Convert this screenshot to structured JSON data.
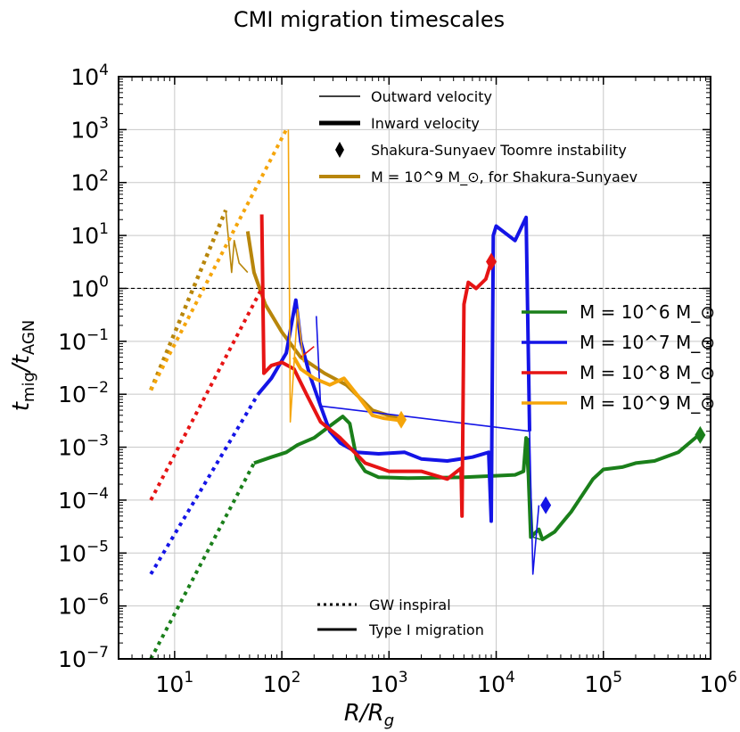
{
  "chart_data": {
    "type": "line",
    "title": "CMI migration timescales",
    "xlabel": "R/R_g",
    "ylabel": "t_mig/t_AGN",
    "x_scale": "log",
    "y_scale": "log",
    "xlim": [
      3,
      1000000
    ],
    "ylim": [
      1e-07,
      10000
    ],
    "x_ticks": [
      {
        "value": 10,
        "base": "10",
        "exp": "1"
      },
      {
        "value": 100,
        "base": "10",
        "exp": "2"
      },
      {
        "value": 1000,
        "base": "10",
        "exp": "3"
      },
      {
        "value": 10000,
        "base": "10",
        "exp": "4"
      },
      {
        "value": 100000,
        "base": "10",
        "exp": "5"
      },
      {
        "value": 1000000,
        "base": "10",
        "exp": "6"
      }
    ],
    "y_ticks": [
      {
        "value": 1e-07,
        "base": "10",
        "exp": "−7"
      },
      {
        "value": 1e-06,
        "base": "10",
        "exp": "−6"
      },
      {
        "value": 1e-05,
        "base": "10",
        "exp": "−5"
      },
      {
        "value": 0.0001,
        "base": "10",
        "exp": "−4"
      },
      {
        "value": 0.001,
        "base": "10",
        "exp": "−3"
      },
      {
        "value": 0.01,
        "base": "10",
        "exp": "−2"
      },
      {
        "value": 0.1,
        "base": "10",
        "exp": "−1"
      },
      {
        "value": 1,
        "base": "10",
        "exp": "0"
      },
      {
        "value": 10,
        "base": "10",
        "exp": "1"
      },
      {
        "value": 100,
        "base": "10",
        "exp": "2"
      },
      {
        "value": 1000,
        "base": "10",
        "exp": "3"
      },
      {
        "value": 10000,
        "base": "10",
        "exp": "4"
      }
    ],
    "grid": true,
    "reference_line": {
      "y": 1,
      "style": "dashed"
    },
    "series": [
      {
        "name": "M = 10^6 M_⊙",
        "color": "#1a7f1a",
        "gw_inspiral": [
          [
            6,
            1e-07
          ],
          [
            55,
            0.0005
          ]
        ],
        "type1_outward": [
          [
            20000,
            0.0015
          ],
          [
            22000,
            2e-05
          ],
          [
            26000,
            1.8e-05
          ]
        ],
        "type1_inward": [
          [
            55,
            0.0005
          ],
          [
            80,
            0.00065
          ],
          [
            110,
            0.0008
          ],
          [
            140,
            0.0011
          ],
          [
            200,
            0.0015
          ],
          [
            280,
            0.0025
          ],
          [
            370,
            0.0038
          ],
          [
            430,
            0.0028
          ],
          [
            500,
            0.0006
          ],
          [
            600,
            0.00035
          ],
          [
            800,
            0.00027
          ],
          [
            1500,
            0.00026
          ],
          [
            5000,
            0.00027
          ],
          [
            15000,
            0.0003
          ],
          [
            18000,
            0.00035
          ],
          [
            19000,
            0.0015
          ],
          [
            20000,
            0.0003
          ],
          [
            21000,
            2e-05
          ],
          [
            25000,
            2.8e-05
          ],
          [
            27000,
            1.8e-05
          ],
          [
            35000,
            2.5e-05
          ],
          [
            50000,
            6e-05
          ],
          [
            80000,
            0.00025
          ],
          [
            100000,
            0.00038
          ],
          [
            150000,
            0.00042
          ],
          [
            200000,
            0.0005
          ],
          [
            300000,
            0.00055
          ],
          [
            500000,
            0.0008
          ],
          [
            750000,
            0.0016
          ]
        ],
        "toomre_marker": {
          "x": 800000,
          "y": 0.0017
        }
      },
      {
        "name": "M = 10^7 M_⊙",
        "color": "#1414e6",
        "gw_inspiral": [
          [
            6,
            4e-06
          ],
          [
            60,
            0.01
          ]
        ],
        "type1_outward": [
          [
            210,
            0.3
          ],
          [
            230,
            0.006
          ],
          [
            20500,
            0.002
          ],
          [
            22000,
            4e-06
          ],
          [
            25000,
            8e-05
          ]
        ],
        "type1_inward": [
          [
            60,
            0.01
          ],
          [
            80,
            0.02
          ],
          [
            110,
            0.06
          ],
          [
            135,
            0.6
          ],
          [
            150,
            0.1
          ],
          [
            180,
            0.025
          ],
          [
            230,
            0.006
          ],
          [
            280,
            0.002
          ],
          [
            350,
            0.0012
          ],
          [
            500,
            0.0008
          ],
          [
            800,
            0.00075
          ],
          [
            1400,
            0.0008
          ],
          [
            2000,
            0.0006
          ],
          [
            3500,
            0.00055
          ],
          [
            6000,
            0.00065
          ],
          [
            8500,
            0.0008
          ],
          [
            9000,
            4e-05
          ],
          [
            9400,
            10
          ],
          [
            10000,
            15
          ],
          [
            15000,
            8
          ],
          [
            19000,
            22
          ],
          [
            20500,
            0.002
          ]
        ],
        "toomre_marker": {
          "x": 29000,
          "y": 8e-05
        }
      },
      {
        "name": "M = 10^8 M_⊙",
        "color": "#e61414",
        "gw_inspiral": [
          [
            6,
            0.0001
          ],
          [
            65,
            1
          ]
        ],
        "type1_outward": [
          [
            150,
            0.05
          ],
          [
            200,
            0.08
          ]
        ],
        "type1_inward": [
          [
            65,
            25
          ],
          [
            68,
            0.025
          ],
          [
            80,
            0.035
          ],
          [
            100,
            0.04
          ],
          [
            130,
            0.03
          ],
          [
            170,
            0.01
          ],
          [
            230,
            0.003
          ],
          [
            350,
            0.0015
          ],
          [
            600,
            0.0005
          ],
          [
            1000,
            0.00035
          ],
          [
            2000,
            0.00035
          ],
          [
            3500,
            0.00025
          ],
          [
            4700,
            0.0004
          ],
          [
            4800,
            5e-05
          ],
          [
            5000,
            0.5
          ],
          [
            5500,
            1.3
          ],
          [
            6500,
            1
          ],
          [
            8000,
            1.5
          ],
          [
            9000,
            3.2
          ]
        ],
        "toomre_marker": {
          "x": 9000,
          "y": 3.2
        }
      },
      {
        "name": "M = 10^9 M_⊙",
        "color": "#f5a50a",
        "gw_inspiral": [
          [
            6,
            0.012
          ],
          [
            110,
            1000
          ]
        ],
        "type1_outward": [
          [
            115,
            1000
          ],
          [
            120,
            0.003
          ],
          [
            140,
            0.4
          ],
          [
            160,
            0.04
          ]
        ],
        "type1_inward": [
          [
            130,
            0.05
          ],
          [
            150,
            0.03
          ],
          [
            200,
            0.02
          ],
          [
            280,
            0.015
          ],
          [
            380,
            0.02
          ],
          [
            500,
            0.01
          ],
          [
            700,
            0.004
          ],
          [
            900,
            0.0035
          ],
          [
            1300,
            0.0032
          ]
        ],
        "toomre_marker": {
          "x": 1300,
          "y": 0.0033
        }
      }
    ],
    "ss_series": {
      "name": "M = 10^9 M_⊙, for Shakura-Sunyaev",
      "color": "#b8860b",
      "gw_inspiral": [
        [
          6,
          0.012
        ],
        [
          30,
          30
        ]
      ],
      "type1_outward": [
        [
          30,
          30
        ],
        [
          34,
          2
        ],
        [
          36,
          8
        ],
        [
          40,
          3
        ],
        [
          48,
          2
        ]
      ],
      "type1_inward": [
        [
          48,
          12
        ],
        [
          55,
          2
        ],
        [
          70,
          0.5
        ],
        [
          100,
          0.15
        ],
        [
          150,
          0.05
        ],
        [
          250,
          0.025
        ],
        [
          400,
          0.015
        ],
        [
          700,
          0.005
        ],
        [
          1200,
          0.0035
        ]
      ]
    },
    "legend_top": {
      "placement": "top-right",
      "items": [
        {
          "label": "Outward velocity",
          "style": "thin-line"
        },
        {
          "label": "Inward velocity",
          "style": "thick-line"
        },
        {
          "label": "Shakura-Sunyaev Toomre instability",
          "style": "diamond"
        },
        {
          "label": "M = 10^9 M_⊙, for Shakura-Sunyaev",
          "style": "gold-line"
        }
      ]
    },
    "legend_mass": {
      "placement": "center-right",
      "items": [
        {
          "label": "M = 10^6 M_⊙",
          "color": "#1a7f1a"
        },
        {
          "label": "M = 10^7 M_⊙",
          "color": "#1414e6"
        },
        {
          "label": "M = 10^8 M_⊙",
          "color": "#e61414"
        },
        {
          "label": "M = 10^9 M_⊙",
          "color": "#f5a50a"
        }
      ]
    },
    "legend_style": {
      "placement": "bottom-center",
      "items": [
        {
          "label": "GW inspiral",
          "style": "dotted"
        },
        {
          "label": "Type I migration",
          "style": "solid"
        }
      ]
    }
  }
}
